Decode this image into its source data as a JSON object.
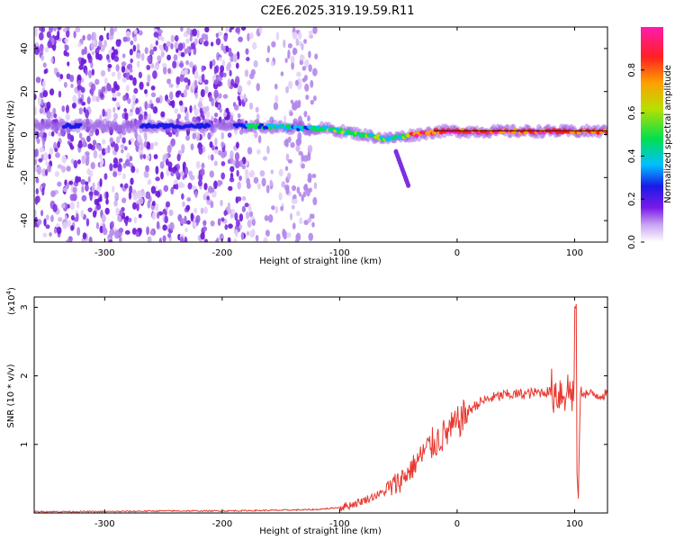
{
  "title": "C2E6.2025.319.19.59.R11",
  "spectrogram": {
    "type": "heatmap",
    "xlabel": "Height of straight line (km)",
    "ylabel": "Frequency (Hz)",
    "xlim": [
      -360,
      128
    ],
    "ylim": [
      -50,
      50
    ],
    "xticks": [
      -300,
      -200,
      -100,
      0,
      100
    ],
    "yticks": [
      -40,
      -20,
      0,
      20,
      40
    ],
    "noise_region_km": [
      -360,
      -120
    ],
    "signal_band_hz": 2
  },
  "colorbar": {
    "label": "Normalized spectral amplitude",
    "range": [
      0.0,
      1.0
    ],
    "ticks": [
      "0.0",
      "0.2",
      "0.4",
      "0.6",
      "0.8"
    ]
  },
  "chart_data": [
    {
      "type": "heatmap",
      "title": "C2E6.2025.319.19.59.R11",
      "xlabel": "Height of straight line (km)",
      "ylabel": "Frequency (Hz)",
      "xlim": [
        -360,
        128
      ],
      "ylim": [
        -50,
        50
      ],
      "colorbar_label": "Normalized spectral amplitude"
    },
    {
      "type": "line",
      "xlabel": "Height of straight line (km)",
      "ylabel": "SNR (10 * v/v)",
      "yscale_label": "(x10",
      "yscale_exp": "4",
      "xlim": [
        -360,
        128
      ],
      "ylim": [
        0,
        3.15
      ],
      "xticks": [
        "-300",
        "-200",
        "-100",
        "0",
        "100"
      ],
      "yticks": [
        "1",
        "2",
        "3"
      ],
      "color": "#e8382f",
      "series": [
        {
          "name": "SNR",
          "x": [
            -360,
            -300,
            -250,
            -200,
            -150,
            -120,
            -100,
            -90,
            -80,
            -70,
            -60,
            -50,
            -40,
            -30,
            -20,
            -10,
            0,
            10,
            20,
            30,
            40,
            50,
            60,
            70,
            80,
            90,
            95,
            100,
            103,
            105,
            110,
            120,
            128
          ],
          "values": [
            0.02,
            0.02,
            0.03,
            0.03,
            0.04,
            0.05,
            0.08,
            0.12,
            0.18,
            0.25,
            0.32,
            0.45,
            0.62,
            0.85,
            1.02,
            1.15,
            1.3,
            1.5,
            1.62,
            1.68,
            1.72,
            1.73,
            1.74,
            1.76,
            1.77,
            1.77,
            1.78,
            1.75,
            0.1,
            1.78,
            1.74,
            1.72,
            1.73
          ]
        }
      ]
    }
  ]
}
